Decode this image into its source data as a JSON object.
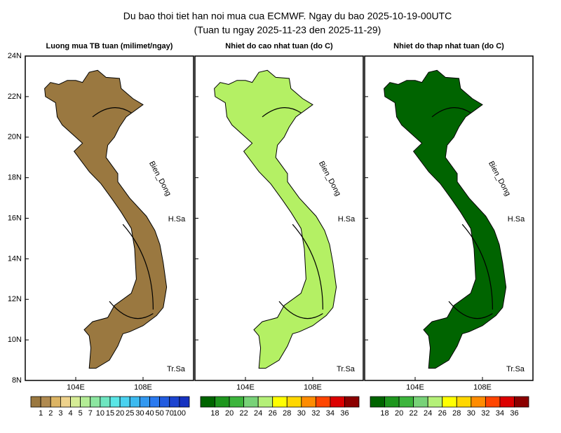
{
  "title": "Du bao thoi tiet han noi mua cua ECMWF. Ngay du bao 2025-10-19-00UTC",
  "subtitle": "(Tuan tu ngay 2025-11-23 den 2025-11-29)",
  "y_axis_labels": [
    "24N",
    "22N",
    "20N",
    "18N",
    "16N",
    "14N",
    "12N",
    "10N",
    "8N"
  ],
  "x_axis_labels": [
    "104E",
    "108E"
  ],
  "annotations": [
    "Bien_Dong",
    "H.Sa",
    "Tr.Sa"
  ],
  "panels": [
    {
      "title": "Luong mua TB tuan (milimet/ngay)",
      "map_color": "#9a7840",
      "colorbar": {
        "colors": [
          "#9a7840",
          "#b08a50",
          "#dcb464",
          "#eed28c",
          "#d6ec96",
          "#b4ec96",
          "#8ce6a0",
          "#6ee6c0",
          "#5ae6e6",
          "#4ad2f0",
          "#3cbaf0",
          "#3298f0",
          "#2a7af0",
          "#225ce0",
          "#1c44d0",
          "#1632c0"
        ],
        "labels": [
          "1",
          "2",
          "3",
          "4",
          "5",
          "7",
          "10",
          "15",
          "20",
          "25",
          "30",
          "40",
          "50",
          "70",
          "100"
        ]
      }
    },
    {
      "title": "Nhiet do cao nhat tuan (do C)",
      "map_color": "#b4f064",
      "colorbar": {
        "colors": [
          "#006400",
          "#1e961e",
          "#3cb43c",
          "#78d278",
          "#b4f078",
          "#ffff00",
          "#ffd700",
          "#ff8c00",
          "#ff4500",
          "#dc0000",
          "#8b0000"
        ],
        "labels": [
          "18",
          "20",
          "22",
          "24",
          "26",
          "28",
          "30",
          "32",
          "34",
          "36"
        ]
      }
    },
    {
      "title": "Nhiet do thap nhat tuan (do C)",
      "map_color": "#006400",
      "colorbar": {
        "colors": [
          "#006400",
          "#1e961e",
          "#3cb43c",
          "#78d278",
          "#b4f078",
          "#ffff00",
          "#ffd700",
          "#ff8c00",
          "#ff4500",
          "#dc0000",
          "#8b0000"
        ],
        "labels": [
          "18",
          "20",
          "22",
          "24",
          "26",
          "28",
          "30",
          "32",
          "34",
          "36"
        ]
      }
    }
  ]
}
